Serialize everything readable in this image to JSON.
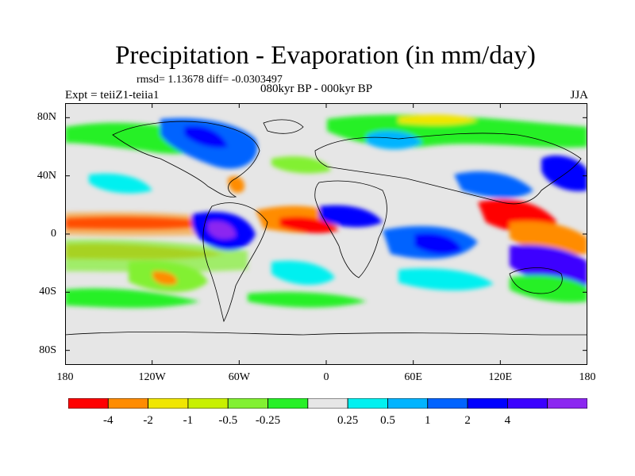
{
  "header": {
    "title": "Precipitation - Evaporation (in mm/day)",
    "stats": "rmsd= 1.13678 diff= -0.0303497",
    "left_string": "Expt = teiiZ1-teiia1",
    "center_string": "080kyr BP - 000kyr BP",
    "right_string": "JJA"
  },
  "map": {
    "projection": "cylindrical-equidistant",
    "lon_range": [
      -180,
      180
    ],
    "lat_range": [
      -90,
      90
    ],
    "x_ticks": [
      {
        "value": -180,
        "label": "180"
      },
      {
        "value": -120,
        "label": "120W"
      },
      {
        "value": -60,
        "label": "60W"
      },
      {
        "value": 0,
        "label": "0"
      },
      {
        "value": 60,
        "label": "60E"
      },
      {
        "value": 120,
        "label": "120E"
      },
      {
        "value": 180,
        "label": "180"
      }
    ],
    "y_ticks": [
      {
        "value": 80,
        "label": "80N"
      },
      {
        "value": 40,
        "label": "40N"
      },
      {
        "value": 0,
        "label": "0"
      },
      {
        "value": -40,
        "label": "40S"
      },
      {
        "value": -80,
        "label": "80S"
      }
    ],
    "background_color": "#e6e6e6"
  },
  "colorbar": {
    "colors": [
      "#ff0000",
      "#ff8c00",
      "#f0e600",
      "#c8f000",
      "#82f032",
      "#28f028",
      "#e6e6e6",
      "#00f0f0",
      "#00b4ff",
      "#0064ff",
      "#0000ff",
      "#3c00ff",
      "#8c28f0"
    ],
    "labels": [
      "-4",
      "-2",
      "-1",
      "-0.5",
      "-0.25",
      "0.25",
      "0.5",
      "1",
      "2",
      "4"
    ]
  }
}
